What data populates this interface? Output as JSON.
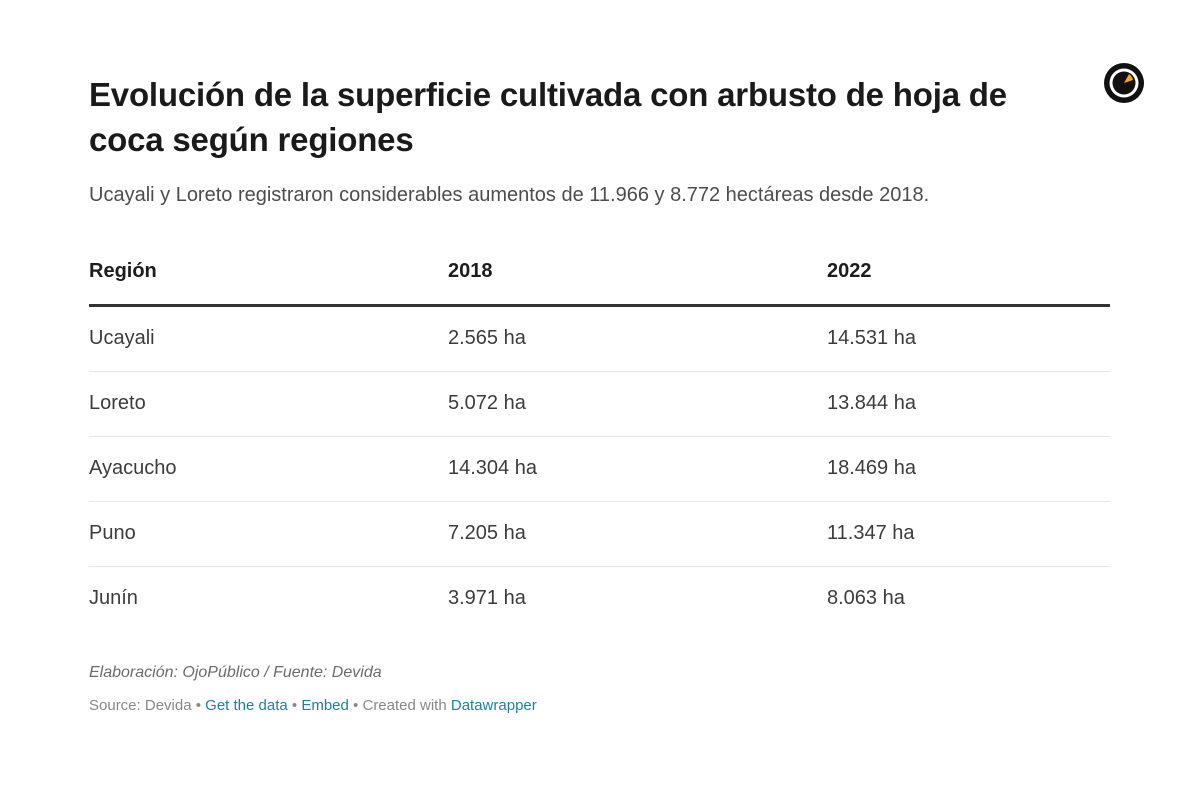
{
  "chart_data": {
    "type": "table",
    "title": "Evolución de la superficie cultivada con arbusto de hoja de coca según regiones",
    "subtitle": "Ucayali y Loreto registraron considerables aumentos de 11.966 y 8.772 hectáreas desde 2018.",
    "columns": [
      "Región",
      "2018",
      "2022"
    ],
    "rows": [
      [
        "Ucayali",
        "2.565 ha",
        "14.531 ha"
      ],
      [
        "Loreto",
        "5.072 ha",
        "13.844 ha"
      ],
      [
        "Ayacucho",
        "14.304 ha",
        "18.469 ha"
      ],
      [
        "Puno",
        "7.205 ha",
        "11.347 ha"
      ],
      [
        "Junín",
        "3.971 ha",
        "8.063 ha"
      ]
    ],
    "note": "Elaboración: OjoPúblico / Fuente: Devida"
  },
  "footer": {
    "source": "Source: Devida",
    "get_data": "Get the data",
    "embed": "Embed",
    "created_with": "Created with",
    "datawrapper": "Datawrapper"
  },
  "icons": {
    "logo": "ojopublico-eye-logo-icon"
  },
  "colors": {
    "link": "#1d81a2",
    "header_rule": "#333333",
    "row_rule": "#e6e6e6",
    "logo_accent": "#f5a623"
  }
}
